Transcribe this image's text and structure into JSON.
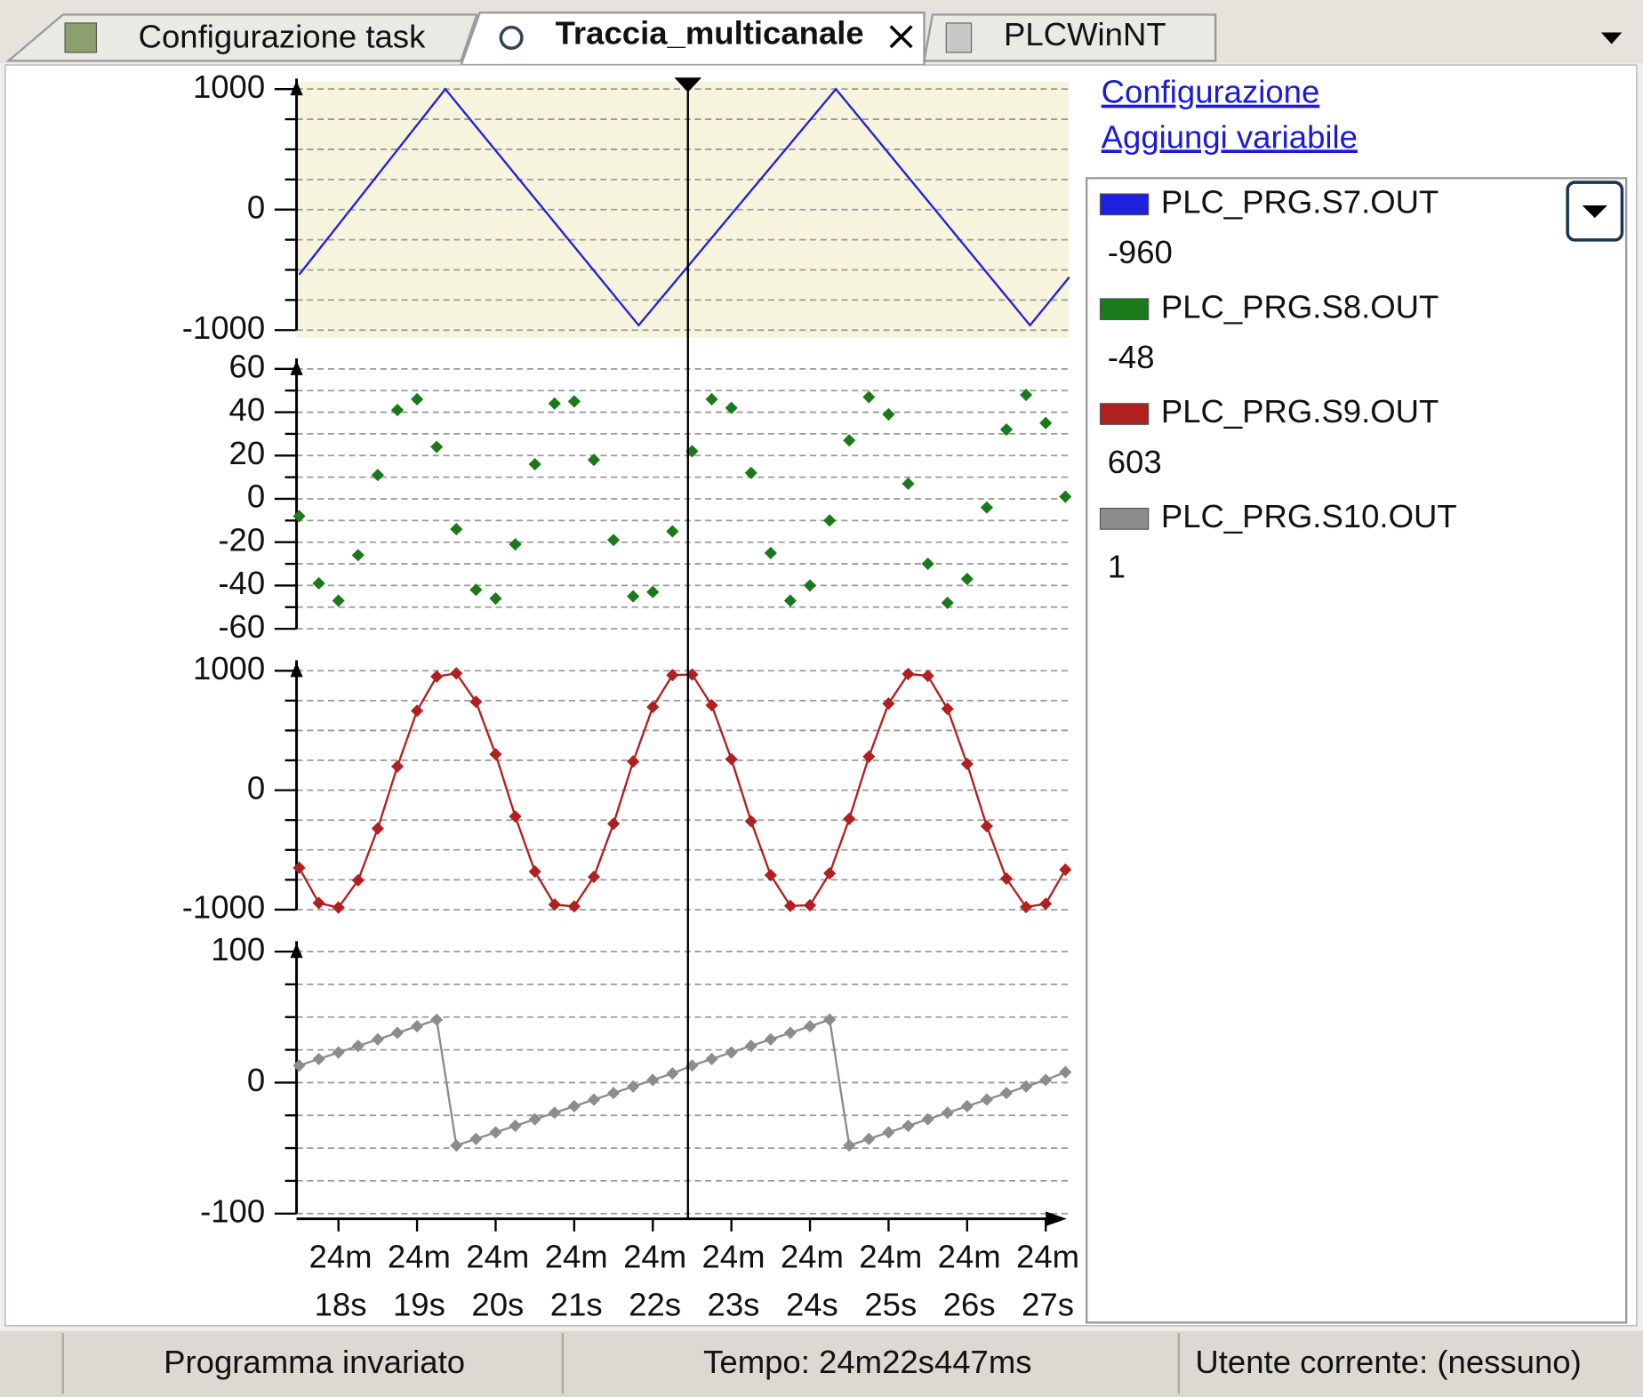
{
  "tabs": [
    {
      "label": "Configurazione task"
    },
    {
      "label": "Traccia_multicanale"
    },
    {
      "label": "PLCWinNT"
    }
  ],
  "links": [
    "Configurazione",
    "Aggiungi variabile"
  ],
  "cursor": 22.447,
  "chart_data": [
    {
      "type": "line",
      "x": [
        17.5,
        19.36,
        21.82,
        24.33,
        26.8,
        27.3
      ],
      "xlim": [
        17.5,
        27.3
      ],
      "ylim": [
        -1000,
        1000
      ],
      "yticks": [
        -1000,
        0,
        1000
      ],
      "minor_yticks": [
        -750,
        -500,
        -250,
        250,
        500,
        750
      ],
      "background": "#f7f4de",
      "series": [
        {
          "name": "PLC_PRG.S7.OUT",
          "color": "#2020e0",
          "line": true,
          "markers": false,
          "cursor_value": -960,
          "values": [
            -540,
            1000,
            -960,
            1000,
            -960,
            -560
          ]
        }
      ]
    },
    {
      "type": "line",
      "x": [
        17.5,
        17.75,
        18,
        18.25,
        18.5,
        18.75,
        19,
        19.25,
        19.5,
        19.75,
        20,
        20.25,
        20.5,
        20.75,
        21,
        21.25,
        21.5,
        21.75,
        22,
        22.25,
        22.5,
        22.75,
        23,
        23.25,
        23.5,
        23.75,
        24,
        24.25,
        24.5,
        24.75,
        25,
        25.25,
        25.5,
        25.75,
        26,
        26.25,
        26.5,
        26.75,
        27,
        27.25
      ],
      "xlim": [
        17.5,
        27.3
      ],
      "ylim": [
        -60,
        60
      ],
      "yticks": [
        -60,
        -40,
        -20,
        0,
        20,
        40,
        60
      ],
      "minor_yticks": [
        -50,
        -30,
        -10,
        10,
        30,
        50
      ],
      "series": [
        {
          "name": "PLC_PRG.S8.OUT",
          "color": "#1a7a1a",
          "line": false,
          "markers": true,
          "cursor_value": -48,
          "values": [
            -8,
            -39,
            -47,
            -26,
            11,
            41,
            46,
            24,
            -14,
            -42,
            -46,
            -21,
            16,
            44,
            45,
            18,
            -19,
            -45,
            -43,
            -15,
            22,
            46,
            42,
            12,
            -25,
            -47,
            -40,
            -10,
            27,
            47,
            39,
            7,
            -30,
            -48,
            -37,
            -4,
            32,
            48,
            35,
            1
          ]
        }
      ]
    },
    {
      "type": "line",
      "x": [
        17.5,
        17.75,
        18,
        18.25,
        18.5,
        18.75,
        19,
        19.25,
        19.5,
        19.75,
        20,
        20.25,
        20.5,
        20.75,
        21,
        21.25,
        21.5,
        21.75,
        22,
        22.25,
        22.5,
        22.75,
        23,
        23.25,
        23.5,
        23.75,
        24,
        24.25,
        24.5,
        24.75,
        25,
        25.25,
        25.5,
        25.75,
        26,
        26.25,
        26.5,
        26.75,
        27,
        27.25
      ],
      "xlim": [
        17.5,
        27.3
      ],
      "ylim": [
        -1000,
        1000
      ],
      "yticks": [
        -1000,
        0,
        1000
      ],
      "minor_yticks": [
        -750,
        -500,
        -250,
        250,
        500,
        750
      ],
      "series": [
        {
          "name": "PLC_PRG.S9.OUT",
          "color": "#b02020",
          "line": true,
          "markers": true,
          "cursor_value": 603,
          "values": [
            -649,
            -944,
            -982,
            -754,
            -321,
            199,
            665,
            951,
            978,
            740,
            301,
            -220,
            -681,
            -957,
            -973,
            -725,
            -281,
            240,
            696,
            963,
            968,
            711,
            260,
            -260,
            -711,
            -968,
            -963,
            -696,
            -240,
            281,
            725,
            973,
            957,
            681,
            220,
            -301,
            -740,
            -978,
            -951,
            -665
          ]
        }
      ]
    },
    {
      "type": "line",
      "x": [
        17.5,
        17.75,
        18,
        18.25,
        18.5,
        18.75,
        19,
        19.25,
        19.5,
        19.75,
        20,
        20.25,
        20.5,
        20.75,
        21,
        21.25,
        21.5,
        21.75,
        22,
        22.25,
        22.5,
        22.75,
        23,
        23.25,
        23.5,
        23.75,
        24,
        24.25,
        24.5,
        24.75,
        25,
        25.25,
        25.5,
        25.75,
        26,
        26.25,
        26.5,
        26.75,
        27,
        27.25
      ],
      "xlim": [
        17.5,
        27.3
      ],
      "ylim": [
        -100,
        100
      ],
      "yticks": [
        -100,
        0,
        100
      ],
      "minor_yticks": [
        -75,
        -50,
        -25,
        25,
        50,
        75
      ],
      "xticks": [
        {
          "value": 18,
          "label": "24m 18s"
        },
        {
          "value": 19,
          "label": "24m 19s"
        },
        {
          "value": 20,
          "label": "24m 20s"
        },
        {
          "value": 21,
          "label": "24m 21s"
        },
        {
          "value": 22,
          "label": "24m 22s"
        },
        {
          "value": 23,
          "label": "24m 23s"
        },
        {
          "value": 24,
          "label": "24m 24s"
        },
        {
          "value": 25,
          "label": "24m 25s"
        },
        {
          "value": 26,
          "label": "24m 26s"
        },
        {
          "value": 27,
          "label": "24m 27s"
        }
      ],
      "series": [
        {
          "name": "PLC_PRG.S10.OUT",
          "color": "#8c8c8c",
          "line": true,
          "markers": true,
          "cursor_value": 1,
          "values": [
            13,
            18,
            23,
            28,
            33,
            38,
            43,
            48,
            -48,
            -43,
            -38,
            -33,
            -28,
            -23,
            -18,
            -13,
            -8,
            -3,
            2,
            7,
            13,
            18,
            23,
            28,
            33,
            38,
            43,
            48,
            -48,
            -43,
            -38,
            -33,
            -28,
            -23,
            -18,
            -13,
            -8,
            -3,
            2,
            8
          ]
        }
      ]
    }
  ],
  "status": [
    "Programma invariato",
    "Tempo: 24m22s447ms",
    "Utente corrente: (nessuno)"
  ]
}
